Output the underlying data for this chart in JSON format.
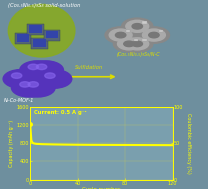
{
  "bg_color": "#6e8f9e",
  "title_text": "(Co₀.₅Ni₀.₅)₉S₈ solid-solution",
  "mof_label": "Ni-Co-MOF-1",
  "sulfidation_label": "Sulfidation",
  "product_label": "(Co₀.₅Ni₀.₅)₉S₈/N-C",
  "ylabel_left": "Capacity (mAh g⁻¹)",
  "ylabel_right": "Coulombic efficiency (%)",
  "xlabel": "Cycle number",
  "annotation": "Current: 0.5 A g⁻¹",
  "ylim_left": [
    0,
    1600
  ],
  "ylim_right": [
    0,
    100
  ],
  "xlim": [
    0,
    120
  ],
  "yticks_left": [
    0,
    400,
    800,
    1200,
    1600
  ],
  "yticks_right": [
    0,
    50,
    100
  ],
  "xticks": [
    0,
    40,
    80,
    120
  ],
  "capacity_x": [
    0,
    1,
    2,
    3,
    5,
    10,
    20,
    30,
    40,
    50,
    60,
    70,
    80,
    90,
    100,
    110,
    120
  ],
  "capacity_y": [
    1230,
    860,
    810,
    795,
    785,
    778,
    772,
    768,
    765,
    763,
    762,
    761,
    760,
    759,
    758,
    757,
    756
  ],
  "ce_x": [
    1,
    2,
    3,
    4,
    5,
    10,
    20,
    30,
    40,
    50,
    60,
    70,
    80,
    90,
    100,
    110,
    120
  ],
  "ce_y": [
    100,
    100,
    100,
    100,
    100,
    100,
    100,
    100,
    100,
    100,
    100,
    100,
    100,
    100,
    100,
    100,
    100
  ],
  "line_color": "#ffff00",
  "line_width": 1.5,
  "axis_color": "#ffff00",
  "tick_color": "#ffff00",
  "label_color": "#ffff00",
  "grid_color": "#cccc55",
  "graph_color_top": "#7a9fae",
  "graph_color_bot": "#6a8f9e",
  "top_bg": "#6b8f9d",
  "sphere_purple": "#5533bb",
  "sphere_highlight": "#8866ee",
  "green_ellipse": "#88aa22",
  "hollow_sphere": "#aabbaa"
}
